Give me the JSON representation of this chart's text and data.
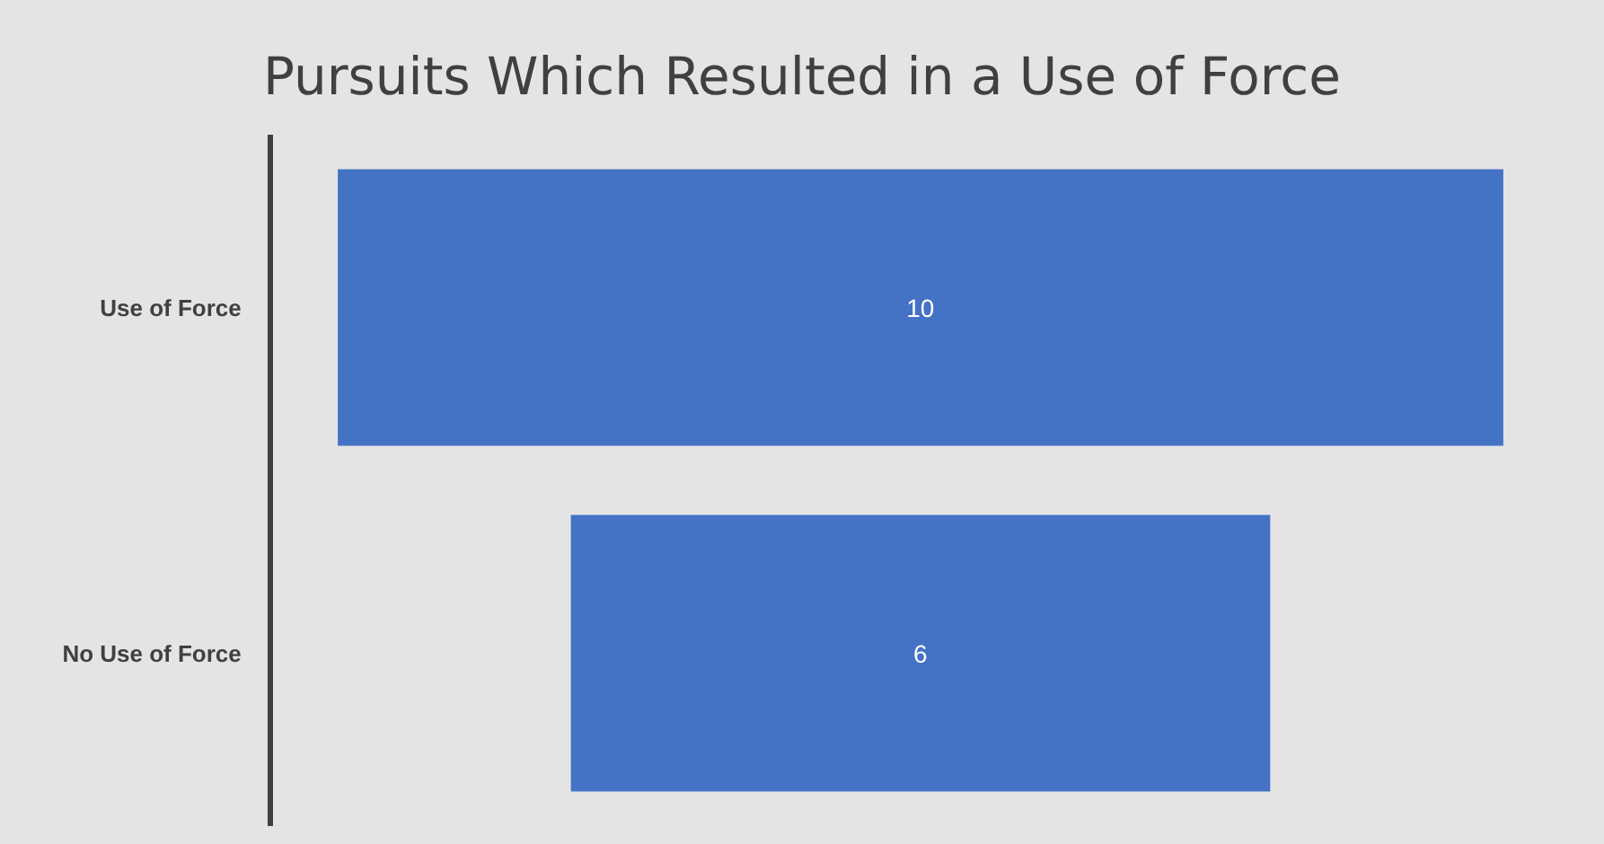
{
  "chart_data": {
    "type": "other",
    "title": "Pursuits Which Resulted in a Use of Force",
    "categories": [
      "Use of Force",
      "No Use of Force"
    ],
    "values": [
      10,
      6
    ],
    "color": "#4472c4",
    "data_labels": true
  }
}
